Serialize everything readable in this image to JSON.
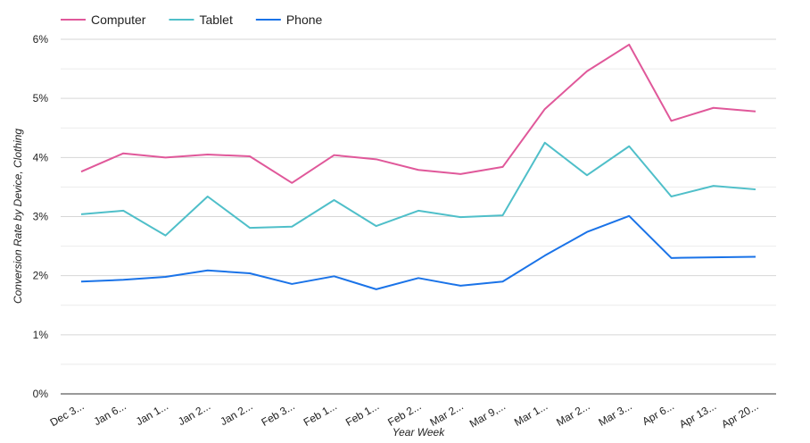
{
  "chart_data": {
    "type": "line",
    "x_label": "Year Week",
    "y_label": "Conversion Rate by Device, Clothing",
    "categories": [
      "Dec 3...",
      "Jan 6...",
      "Jan 1...",
      "Jan 2...",
      "Jan 2...",
      "Feb 3...",
      "Feb 1...",
      "Feb 1...",
      "Feb 2...",
      "Mar 2...",
      "Mar 9,...",
      "Mar 1...",
      "Mar 2...",
      "Mar 3...",
      "Apr 6...",
      "Apr 13...",
      "Apr 20..."
    ],
    "series": [
      {
        "name": "Computer",
        "color": "#e0589a",
        "values": [
          3.76,
          4.07,
          4.0,
          4.05,
          4.02,
          3.57,
          4.04,
          3.97,
          3.79,
          3.72,
          3.84,
          4.82,
          5.46,
          5.91,
          4.62,
          4.84,
          4.78
        ]
      },
      {
        "name": "Tablet",
        "color": "#4fbfc9",
        "values": [
          3.04,
          3.1,
          2.68,
          3.34,
          2.81,
          2.83,
          3.28,
          2.84,
          3.1,
          2.99,
          3.02,
          4.25,
          3.7,
          4.19,
          3.34,
          3.52,
          3.46
        ]
      },
      {
        "name": "Phone",
        "color": "#1a73e8",
        "values": [
          1.9,
          1.93,
          1.98,
          2.09,
          2.04,
          1.86,
          1.99,
          1.77,
          1.96,
          1.83,
          1.9,
          2.34,
          2.74,
          3.01,
          2.3,
          2.31,
          2.32
        ]
      }
    ],
    "ylim": [
      0,
      6
    ],
    "yticks": [
      {
        "value": 0,
        "label": "0%"
      },
      {
        "value": 1,
        "label": "1%"
      },
      {
        "value": 2,
        "label": "2%"
      },
      {
        "value": 3,
        "label": "3%"
      },
      {
        "value": 4,
        "label": "4%"
      },
      {
        "value": 5,
        "label": "5%"
      },
      {
        "value": 6,
        "label": "6%"
      }
    ],
    "minor_yticks": [
      0.5,
      1.5,
      2.5,
      3.5,
      4.5,
      5.5
    ],
    "grid": true,
    "legend": "top-left"
  }
}
